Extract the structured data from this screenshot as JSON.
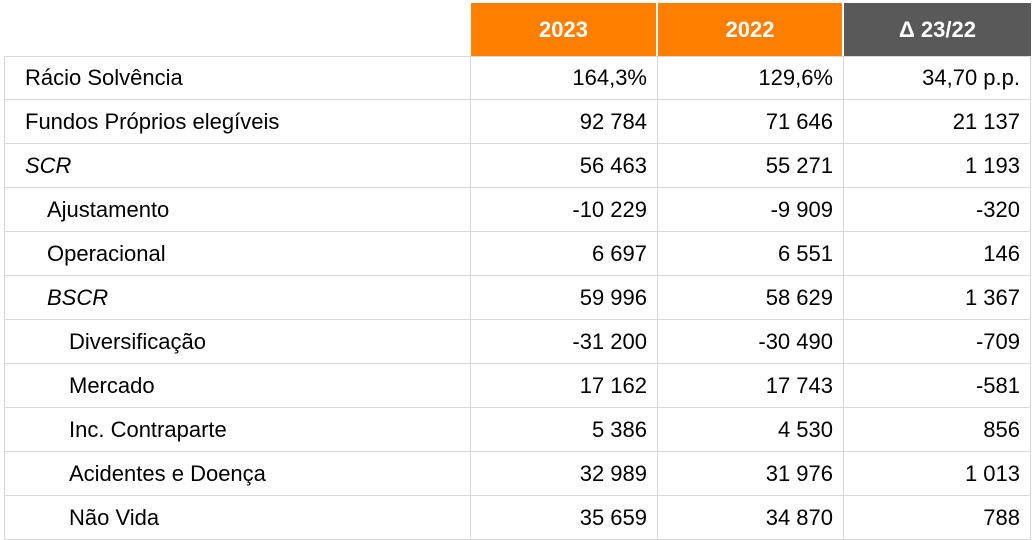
{
  "colors": {
    "header_2023": "#fe7f00",
    "header_2022": "#fe7f00",
    "header_delta": "#595959",
    "grid": "#d9d9d9"
  },
  "header": {
    "col_2023": "2023",
    "col_2022": "2022",
    "col_delta": "Δ 23/22"
  },
  "rows": [
    {
      "label": "Rácio Solvência",
      "v2023": "164,3%",
      "v2022": "129,6%",
      "delta": "34,70 p.p.",
      "level": 0,
      "italic": false
    },
    {
      "label": "Fundos Próprios elegíveis",
      "v2023": "92 784",
      "v2022": "71 646",
      "delta": "21 137",
      "level": 0,
      "italic": false
    },
    {
      "label": "SCR",
      "v2023": "56 463",
      "v2022": "55 271",
      "delta": "1 193",
      "level": 0,
      "italic": true
    },
    {
      "label": "Ajustamento",
      "v2023": "-10 229",
      "v2022": "-9 909",
      "delta": "-320",
      "level": 1,
      "italic": false
    },
    {
      "label": "Operacional",
      "v2023": "6 697",
      "v2022": "6 551",
      "delta": "146",
      "level": 1,
      "italic": false
    },
    {
      "label": "BSCR",
      "v2023": "59 996",
      "v2022": "58 629",
      "delta": "1 367",
      "level": 1,
      "italic": true
    },
    {
      "label": "Diversificação",
      "v2023": "-31 200",
      "v2022": "-30 490",
      "delta": "-709",
      "level": 2,
      "italic": false
    },
    {
      "label": "Mercado",
      "v2023": "17 162",
      "v2022": "17 743",
      "delta": "-581",
      "level": 2,
      "italic": false
    },
    {
      "label": "Inc. Contraparte",
      "v2023": "5 386",
      "v2022": "4 530",
      "delta": "856",
      "level": 2,
      "italic": false
    },
    {
      "label": "Acidentes e Doença",
      "v2023": "32 989",
      "v2022": "31 976",
      "delta": "1 013",
      "level": 2,
      "italic": false
    },
    {
      "label": "Não Vida",
      "v2023": "35 659",
      "v2022": "34 870",
      "delta": "788",
      "level": 2,
      "italic": false
    }
  ]
}
